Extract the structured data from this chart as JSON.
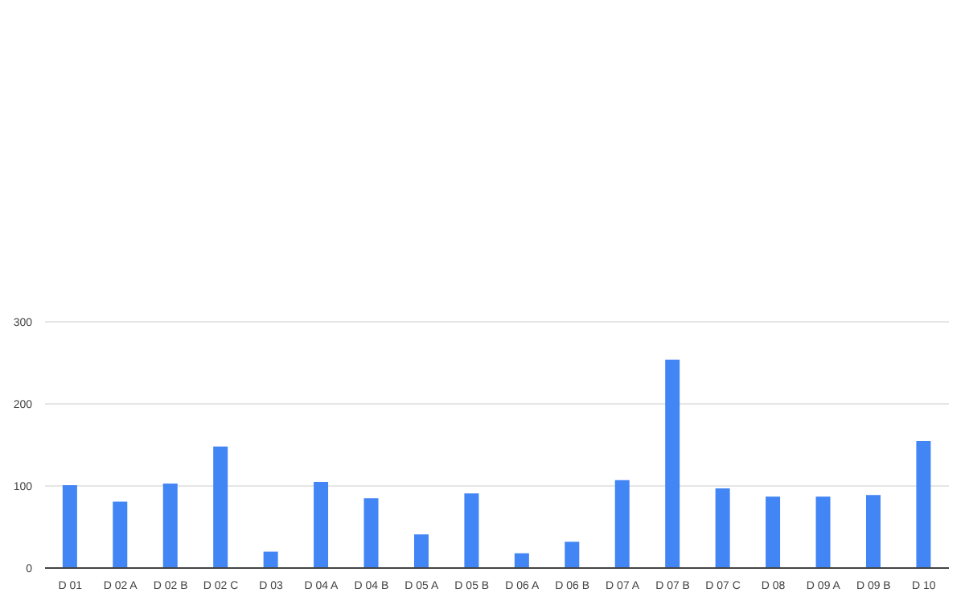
{
  "chart_data": {
    "type": "bar",
    "categories": [
      "D 01",
      "D 02 A",
      "D 02 B",
      "D 02 C",
      "D 03",
      "D 04 A",
      "D 04 B",
      "D 05 A",
      "D 05 B",
      "D 06 A",
      "D 06 B",
      "D 07 A",
      "D 07 B",
      "D 07 C",
      "D 08",
      "D 09 A",
      "D 09 B",
      "D 10"
    ],
    "values": [
      101,
      81,
      103,
      148,
      20,
      105,
      85,
      41,
      91,
      18,
      32,
      107,
      254,
      97,
      87,
      87,
      89,
      155
    ],
    "color": "#4285f4",
    "ylim": [
      0,
      300
    ],
    "yticks": [
      0,
      100,
      200,
      300
    ],
    "grid": "y"
  }
}
